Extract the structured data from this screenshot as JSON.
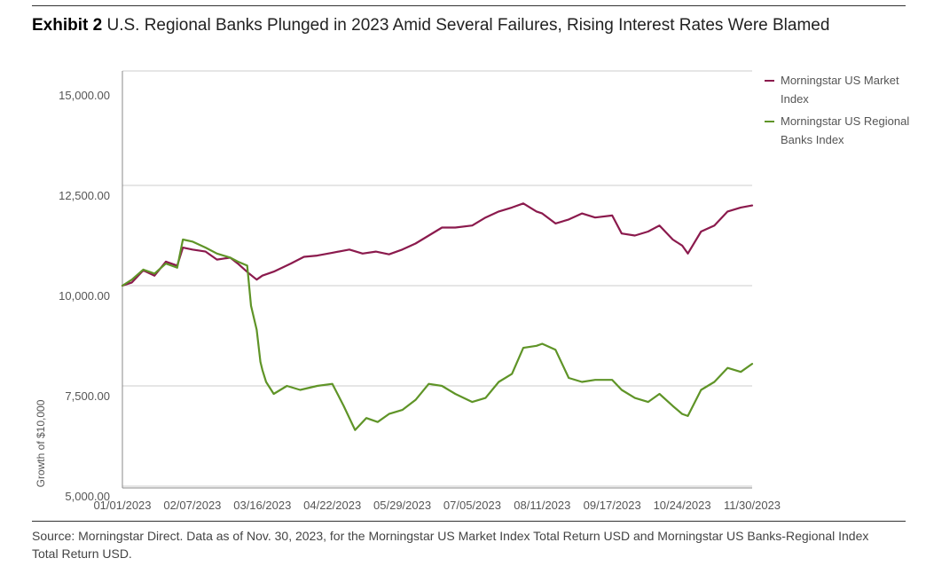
{
  "header": {
    "exhibit_label": "Exhibit 2",
    "title": "U.S. Regional Banks Plunged in 2023 Amid Several Failures, Rising Interest Rates Were Blamed"
  },
  "source": "Source: Morningstar Direct. Data as of Nov. 30, 2023, for the Morningstar US Market Index Total Return USD and Morningstar US Banks-Regional Index Total Return USD.",
  "colors": {
    "market": "#8b1a4d",
    "banks": "#5f9427",
    "grid": "#cccccc"
  },
  "chart_data": {
    "type": "line",
    "ylabel": "Growth of $10,000",
    "ylim": [
      5000,
      15000
    ],
    "yticks": [
      "15,000.00",
      "12,500.00",
      "10,000.00",
      "7,500.00",
      "5,000.00"
    ],
    "xlim": [
      "01/01/2023",
      "11/30/2023"
    ],
    "xtick_labels": [
      "01/01/2023",
      "02/07/2023",
      "03/16/2023",
      "04/22/2023",
      "05/29/2023",
      "07/05/2023",
      "08/11/2023",
      "09/17/2023",
      "10/24/2023",
      "11/30/2023"
    ],
    "legend_position": "top-right",
    "series": [
      {
        "name": "Morningstar US Market Index",
        "points": [
          [
            "01/01/2023",
            10000
          ],
          [
            "01/06/2023",
            10080
          ],
          [
            "01/12/2023",
            10380
          ],
          [
            "01/18/2023",
            10250
          ],
          [
            "01/24/2023",
            10600
          ],
          [
            "01/30/2023",
            10500
          ],
          [
            "02/02/2023",
            10950
          ],
          [
            "02/07/2023",
            10900
          ],
          [
            "02/14/2023",
            10850
          ],
          [
            "02/20/2023",
            10650
          ],
          [
            "02/27/2023",
            10700
          ],
          [
            "03/03/2023",
            10550
          ],
          [
            "03/09/2023",
            10300
          ],
          [
            "03/13/2023",
            10150
          ],
          [
            "03/16/2023",
            10250
          ],
          [
            "03/22/2023",
            10350
          ],
          [
            "03/31/2023",
            10550
          ],
          [
            "04/07/2023",
            10720
          ],
          [
            "04/14/2023",
            10750
          ],
          [
            "04/22/2023",
            10820
          ],
          [
            "05/01/2023",
            10900
          ],
          [
            "05/08/2023",
            10800
          ],
          [
            "05/15/2023",
            10850
          ],
          [
            "05/22/2023",
            10780
          ],
          [
            "05/29/2023",
            10900
          ],
          [
            "06/05/2023",
            11050
          ],
          [
            "06/12/2023",
            11250
          ],
          [
            "06/19/2023",
            11450
          ],
          [
            "06/26/2023",
            11450
          ],
          [
            "07/05/2023",
            11500
          ],
          [
            "07/12/2023",
            11700
          ],
          [
            "07/19/2023",
            11850
          ],
          [
            "07/26/2023",
            11950
          ],
          [
            "08/01/2023",
            12050
          ],
          [
            "08/08/2023",
            11850
          ],
          [
            "08/11/2023",
            11800
          ],
          [
            "08/18/2023",
            11550
          ],
          [
            "08/25/2023",
            11650
          ],
          [
            "09/01/2023",
            11800
          ],
          [
            "09/08/2023",
            11700
          ],
          [
            "09/17/2023",
            11750
          ],
          [
            "09/22/2023",
            11300
          ],
          [
            "09/29/2023",
            11250
          ],
          [
            "10/06/2023",
            11350
          ],
          [
            "10/12/2023",
            11500
          ],
          [
            "10/19/2023",
            11150
          ],
          [
            "10/24/2023",
            11000
          ],
          [
            "10/27/2023",
            10800
          ],
          [
            "11/03/2023",
            11350
          ],
          [
            "11/10/2023",
            11500
          ],
          [
            "11/17/2023",
            11850
          ],
          [
            "11/24/2023",
            11950
          ],
          [
            "11/30/2023",
            12000
          ]
        ]
      },
      {
        "name": "Morningstar US Regional Banks Index",
        "points": [
          [
            "01/01/2023",
            10000
          ],
          [
            "01/06/2023",
            10150
          ],
          [
            "01/12/2023",
            10400
          ],
          [
            "01/18/2023",
            10300
          ],
          [
            "01/24/2023",
            10550
          ],
          [
            "01/30/2023",
            10450
          ],
          [
            "02/02/2023",
            11150
          ],
          [
            "02/07/2023",
            11100
          ],
          [
            "02/14/2023",
            10950
          ],
          [
            "02/20/2023",
            10800
          ],
          [
            "02/27/2023",
            10700
          ],
          [
            "03/03/2023",
            10600
          ],
          [
            "03/08/2023",
            10500
          ],
          [
            "03/10/2023",
            9500
          ],
          [
            "03/13/2023",
            8900
          ],
          [
            "03/15/2023",
            8100
          ],
          [
            "03/16/2023",
            7900
          ],
          [
            "03/18/2023",
            7600
          ],
          [
            "03/22/2023",
            7300
          ],
          [
            "03/29/2023",
            7500
          ],
          [
            "04/05/2023",
            7400
          ],
          [
            "04/14/2023",
            7500
          ],
          [
            "04/22/2023",
            7550
          ],
          [
            "04/28/2023",
            7000
          ],
          [
            "05/04/2023",
            6400
          ],
          [
            "05/10/2023",
            6700
          ],
          [
            "05/16/2023",
            6600
          ],
          [
            "05/22/2023",
            6800
          ],
          [
            "05/29/2023",
            6900
          ],
          [
            "06/05/2023",
            7150
          ],
          [
            "06/12/2023",
            7550
          ],
          [
            "06/19/2023",
            7500
          ],
          [
            "06/26/2023",
            7300
          ],
          [
            "07/05/2023",
            7100
          ],
          [
            "07/12/2023",
            7200
          ],
          [
            "07/19/2023",
            7600
          ],
          [
            "07/26/2023",
            7800
          ],
          [
            "08/01/2023",
            8450
          ],
          [
            "08/08/2023",
            8500
          ],
          [
            "08/11/2023",
            8550
          ],
          [
            "08/18/2023",
            8400
          ],
          [
            "08/25/2023",
            7700
          ],
          [
            "09/01/2023",
            7600
          ],
          [
            "09/08/2023",
            7650
          ],
          [
            "09/17/2023",
            7650
          ],
          [
            "09/22/2023",
            7400
          ],
          [
            "09/29/2023",
            7200
          ],
          [
            "10/06/2023",
            7100
          ],
          [
            "10/12/2023",
            7300
          ],
          [
            "10/19/2023",
            7000
          ],
          [
            "10/24/2023",
            6800
          ],
          [
            "10/27/2023",
            6750
          ],
          [
            "11/03/2023",
            7400
          ],
          [
            "11/10/2023",
            7600
          ],
          [
            "11/17/2023",
            7950
          ],
          [
            "11/24/2023",
            7850
          ],
          [
            "11/30/2023",
            8050
          ]
        ]
      }
    ]
  }
}
